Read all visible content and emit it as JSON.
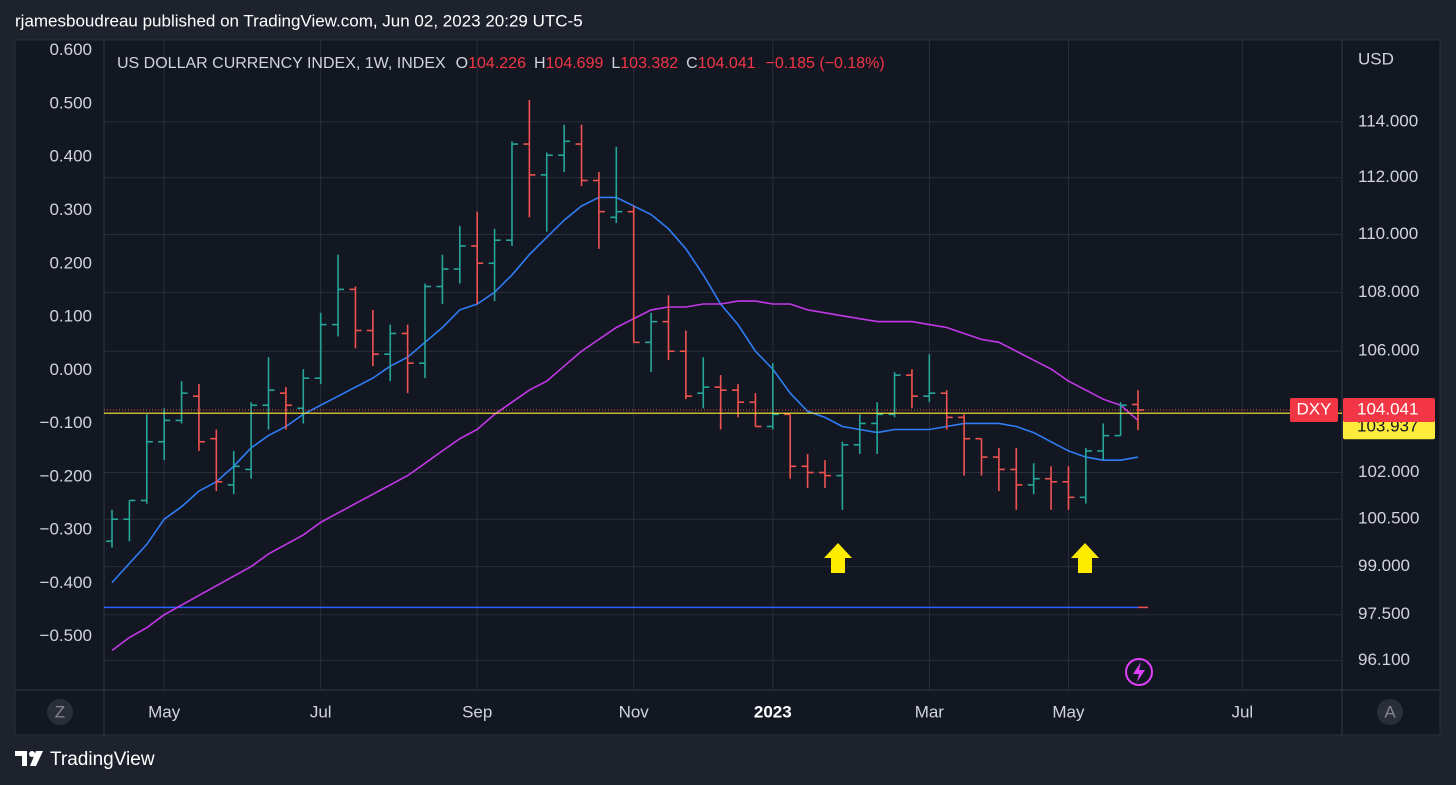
{
  "page": {
    "header": "rjamesboudreau published on TradingView.com, Jun 02, 2023 20:29 UTC-5",
    "footer": "TradingView",
    "buttons": [
      "Z",
      "A"
    ]
  },
  "chart_data": {
    "type": "ohlc",
    "title": "US DOLLAR CURRENCY INDEX, 1W, INDEX",
    "ohlc_labels": [
      "O",
      "H",
      "L",
      "C"
    ],
    "change_label": "−0.185 (−0.18%)",
    "y2_unit": "USD",
    "categories": [
      null,
      null,
      null,
      "May",
      null,
      null,
      null,
      null,
      null,
      null,
      null,
      null,
      "Jul",
      null,
      null,
      null,
      null,
      null,
      null,
      null,
      null,
      "Sep",
      null,
      null,
      null,
      null,
      null,
      null,
      null,
      null,
      "Nov",
      null,
      null,
      null,
      null,
      null,
      null,
      null,
      "2023",
      null,
      null,
      null,
      null,
      null,
      null,
      null,
      null,
      "Mar",
      null,
      null,
      null,
      null,
      null,
      null,
      null,
      "May",
      null,
      null,
      null,
      null,
      null,
      null,
      null,
      null,
      null,
      "Jul"
    ],
    "series": [
      {
        "type": "ohlc",
        "name": "DXY",
        "axis": "y2",
        "up_color": "#26a69a",
        "down_color": "#ef5350",
        "open": [
          99.8,
          100.5,
          101.1,
          103.0,
          103.7,
          104.5,
          103.1,
          101.6,
          102.1,
          104.2,
          104.6,
          104.1,
          105.1,
          106.9,
          108.1,
          106.7,
          105.9,
          106.6,
          105.6,
          108.2,
          108.8,
          109.6,
          109.0,
          109.8,
          113.2,
          112.1,
          112.8,
          113.2,
          111.9,
          110.6,
          110.8,
          106.3,
          107.0,
          106.0,
          104.6,
          104.8,
          104.7,
          104.3,
          103.5,
          103.9,
          102.2,
          102.0,
          101.9,
          102.9,
          103.6,
          103.9,
          105.2,
          104.5,
          104.6,
          103.8,
          103.1,
          102.5,
          102.1,
          101.6,
          101.8,
          101.7,
          101.2,
          102.7,
          103.2,
          104.226,
          null,
          null,
          null,
          null,
          null,
          null
        ],
        "high": [
          100.8,
          101.1,
          103.9,
          104.1,
          105.0,
          104.9,
          103.4,
          102.7,
          104.3,
          105.8,
          104.8,
          105.4,
          107.3,
          109.3,
          108.2,
          107.4,
          106.9,
          106.9,
          108.3,
          109.3,
          110.3,
          110.8,
          110.2,
          113.3,
          114.8,
          112.9,
          113.9,
          113.9,
          112.2,
          113.1,
          111.0,
          107.3,
          107.9,
          106.7,
          105.8,
          105.2,
          104.9,
          104.6,
          105.6,
          103.9,
          102.6,
          102.4,
          103.0,
          103.9,
          104.3,
          105.3,
          105.4,
          105.9,
          104.7,
          103.9,
          103.1,
          102.8,
          102.8,
          102.3,
          102.2,
          102.2,
          102.8,
          103.6,
          104.3,
          104.699,
          null,
          null,
          null,
          null,
          null,
          null
        ],
        "low": [
          99.6,
          99.8,
          101.0,
          102.4,
          103.6,
          102.7,
          101.4,
          101.3,
          101.8,
          103.4,
          103.4,
          103.6,
          104.9,
          106.5,
          106.1,
          105.5,
          105.0,
          104.6,
          105.1,
          107.6,
          108.3,
          107.6,
          107.7,
          109.6,
          110.6,
          110.1,
          112.2,
          111.7,
          109.5,
          110.4,
          106.3,
          105.3,
          105.7,
          104.4,
          104.1,
          103.4,
          103.8,
          103.5,
          103.4,
          101.8,
          101.5,
          101.5,
          100.8,
          102.6,
          102.6,
          103.8,
          104.1,
          104.3,
          103.4,
          101.9,
          101.9,
          101.4,
          100.8,
          101.3,
          100.8,
          100.8,
          101.0,
          102.4,
          103.2,
          103.382,
          null,
          null,
          null,
          null,
          null,
          null
        ],
        "close": [
          100.5,
          101.1,
          103.0,
          103.7,
          104.6,
          103.0,
          101.7,
          102.2,
          104.2,
          104.7,
          104.2,
          105.1,
          106.9,
          108.1,
          106.7,
          105.9,
          106.6,
          105.6,
          108.2,
          108.8,
          109.6,
          109.0,
          109.8,
          113.2,
          112.1,
          112.8,
          113.3,
          111.9,
          110.8,
          110.8,
          106.3,
          107.0,
          106.0,
          104.5,
          104.8,
          104.7,
          104.3,
          103.5,
          103.9,
          102.2,
          102.0,
          101.9,
          102.9,
          103.6,
          103.9,
          105.2,
          104.5,
          104.6,
          103.8,
          103.1,
          102.5,
          102.1,
          101.6,
          101.8,
          101.7,
          101.2,
          102.7,
          103.2,
          104.2,
          104.041,
          null,
          null,
          null,
          null,
          null,
          null
        ]
      },
      {
        "type": "line",
        "axis": "y2",
        "color": "#2f7df6",
        "values": [
          98.5,
          99.1,
          99.7,
          100.5,
          100.9,
          101.4,
          101.7,
          102.2,
          102.8,
          103.2,
          103.5,
          103.9,
          104.2,
          104.5,
          104.8,
          105.1,
          105.5,
          105.8,
          106.3,
          106.8,
          107.4,
          107.6,
          108.0,
          108.6,
          109.3,
          109.9,
          110.5,
          111.0,
          111.3,
          111.3,
          111.0,
          110.7,
          110.2,
          109.5,
          108.6,
          107.6,
          106.9,
          106.0,
          105.4,
          104.6,
          104.0,
          103.8,
          103.5,
          103.4,
          103.3,
          103.4,
          103.4,
          103.4,
          103.5,
          103.6,
          103.6,
          103.6,
          103.5,
          103.3,
          103.0,
          102.7,
          102.5,
          102.4,
          102.4,
          102.5,
          null,
          null,
          null,
          null,
          null,
          null
        ]
      },
      {
        "type": "line",
        "axis": "y2",
        "color": "#c238e8",
        "values": [
          96.4,
          96.8,
          97.1,
          97.5,
          97.8,
          98.1,
          98.4,
          98.7,
          99.0,
          99.4,
          99.7,
          100.0,
          100.4,
          100.7,
          101.0,
          101.3,
          101.6,
          101.9,
          102.3,
          102.7,
          103.1,
          103.4,
          103.9,
          104.3,
          104.7,
          105.0,
          105.5,
          106.0,
          106.4,
          106.8,
          107.1,
          107.4,
          107.5,
          107.5,
          107.6,
          107.6,
          107.7,
          107.7,
          107.6,
          107.6,
          107.4,
          107.3,
          107.2,
          107.1,
          107.0,
          107.0,
          107.0,
          106.9,
          106.8,
          106.6,
          106.4,
          106.3,
          106.0,
          105.7,
          105.4,
          105.0,
          104.7,
          104.4,
          104.2,
          103.7,
          null,
          null,
          null,
          null,
          null,
          null
        ]
      }
    ],
    "price_lines": [
      {
        "value": 103.937,
        "axis": "y2",
        "color": "#ffeb3b"
      }
    ],
    "reference_lines": [
      {
        "value": -0.445,
        "axis": "y",
        "color": "#2962ff"
      }
    ],
    "ylim": [
      -0.6,
      0.62
    ],
    "yticks": [
      {
        "value": 0.6,
        "label": "0.600"
      },
      {
        "value": 0.5,
        "label": "0.500"
      },
      {
        "value": 0.4,
        "label": "0.400"
      },
      {
        "value": 0.3,
        "label": "0.300"
      },
      {
        "value": 0.2,
        "label": "0.200"
      },
      {
        "value": 0.1,
        "label": "0.100"
      },
      {
        "value": 0,
        "label": "0.000"
      },
      {
        "value": -0.1,
        "label": "−0.100"
      },
      {
        "value": -0.2,
        "label": "−0.200"
      },
      {
        "value": -0.3,
        "label": "−0.300"
      },
      {
        "value": -0.4,
        "label": "−0.400"
      },
      {
        "value": -0.5,
        "label": "−0.500"
      }
    ],
    "y2lim": [
      95.2,
      117.0
    ],
    "y2log": true,
    "y2ticks": [
      {
        "value": 114,
        "label": "114.000"
      },
      {
        "value": 112,
        "label": "112.000"
      },
      {
        "value": 110,
        "label": "110.000"
      },
      {
        "value": 108,
        "label": "108.000"
      },
      {
        "value": 106,
        "label": "106.000"
      },
      {
        "value": 102,
        "label": "102.000"
      },
      {
        "value": 100.5,
        "label": "100.500"
      },
      {
        "value": 99,
        "label": "99.000"
      },
      {
        "value": 97.5,
        "label": "97.500"
      },
      {
        "value": 96.1,
        "label": "96.100"
      }
    ],
    "grid": true
  }
}
